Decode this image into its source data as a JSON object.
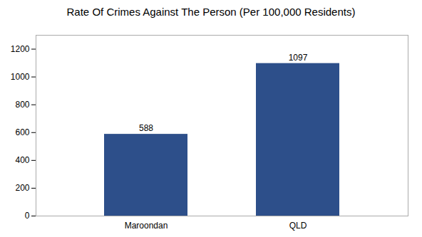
{
  "chart_data": {
    "type": "bar",
    "title": "Rate Of Crimes Against The Person (Per 100,000 Residents)",
    "categories": [
      "Maroondan",
      "QLD"
    ],
    "values": [
      588,
      1097
    ],
    "color": "#2d4f8a",
    "ylim": [
      0,
      1300
    ],
    "yticks": [
      0,
      200,
      400,
      600,
      800,
      1000,
      1200
    ],
    "grid": false,
    "data_labels": true
  }
}
